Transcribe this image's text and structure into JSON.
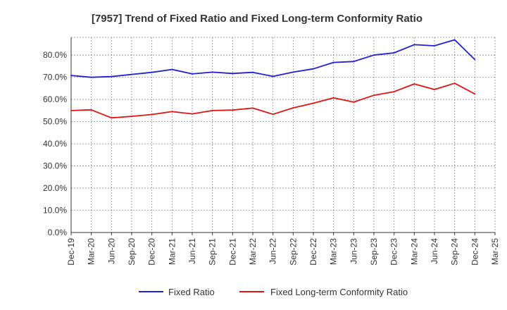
{
  "chart_data": {
    "type": "line",
    "title": "[7957]  Trend of Fixed Ratio and Fixed Long-term Conformity Ratio",
    "xlabel": "",
    "ylabel": "",
    "categories": [
      "Dec-19",
      "Mar-20",
      "Jun-20",
      "Sep-20",
      "Dec-20",
      "Mar-21",
      "Jun-21",
      "Sep-21",
      "Dec-21",
      "Mar-22",
      "Jun-22",
      "Sep-22",
      "Dec-22",
      "Mar-23",
      "Jun-23",
      "Sep-23",
      "Dec-23",
      "Mar-24",
      "Jun-24",
      "Sep-24",
      "Dec-24",
      "Mar-25"
    ],
    "x_tick_labels": [
      "Dec-19",
      "Mar-20",
      "Jun-20",
      "Sep-20",
      "Dec-20",
      "Mar-21",
      "Jun-21",
      "Sep-21",
      "Dec-21",
      "Mar-22",
      "Jun-22",
      "Sep-22",
      "Dec-22",
      "Mar-23",
      "Jun-23",
      "Sep-23",
      "Dec-23",
      "Mar-24",
      "Jun-24",
      "Sep-24",
      "Dec-24",
      "Mar-25"
    ],
    "y_tick_labels": [
      "0.0%",
      "10.0%",
      "20.0%",
      "30.0%",
      "40.0%",
      "50.0%",
      "60.0%",
      "70.0%",
      "80.0%"
    ],
    "y_ticks": [
      0,
      10,
      20,
      30,
      40,
      50,
      60,
      70,
      80
    ],
    "ylim": [
      0,
      88
    ],
    "grid": true,
    "legend_position": "bottom",
    "series": [
      {
        "name": "Fixed Ratio",
        "color": "#1f1fd6",
        "values": [
          70.8,
          70.0,
          70.3,
          71.3,
          72.2,
          73.5,
          71.5,
          72.3,
          71.7,
          72.2,
          70.4,
          72.3,
          73.8,
          76.7,
          77.1,
          80.0,
          81.0,
          84.7,
          84.2,
          86.9,
          78.0,
          null
        ]
      },
      {
        "name": "Fixed Long-term Conformity Ratio",
        "color": "#e01414",
        "values": [
          55.0,
          55.3,
          51.7,
          52.4,
          53.2,
          54.5,
          53.5,
          55.0,
          55.2,
          56.1,
          53.3,
          56.2,
          58.3,
          60.7,
          58.8,
          61.9,
          63.5,
          67.0,
          64.5,
          67.3,
          62.5,
          null
        ]
      }
    ]
  }
}
